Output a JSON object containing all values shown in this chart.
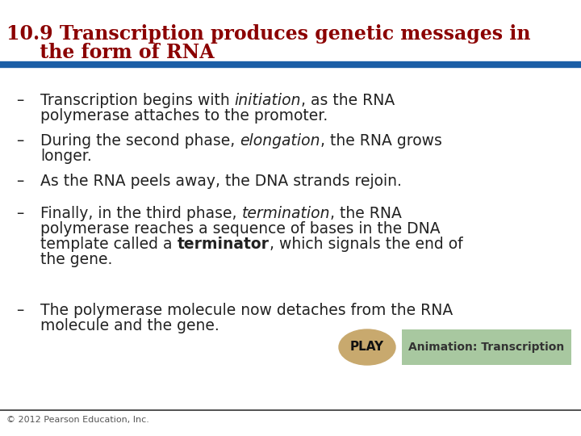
{
  "title_line1": "10.9 Transcription produces genetic messages in",
  "title_line2": "     the form of RNA",
  "title_color": "#8B0000",
  "title_fontsize": 17,
  "blue_bar_color": "#1B5EA6",
  "background_color": "#FFFFFF",
  "bullet_color": "#222222",
  "bullet_fontsize": 13.5,
  "footer_text": "© 2012 Pearson Education, Inc.",
  "footer_fontsize": 8,
  "play_button_color": "#C8A96E",
  "anim_box_color": "#A8C8A0",
  "anim_text": "Animation: Transcription",
  "play_text": "PLAY"
}
